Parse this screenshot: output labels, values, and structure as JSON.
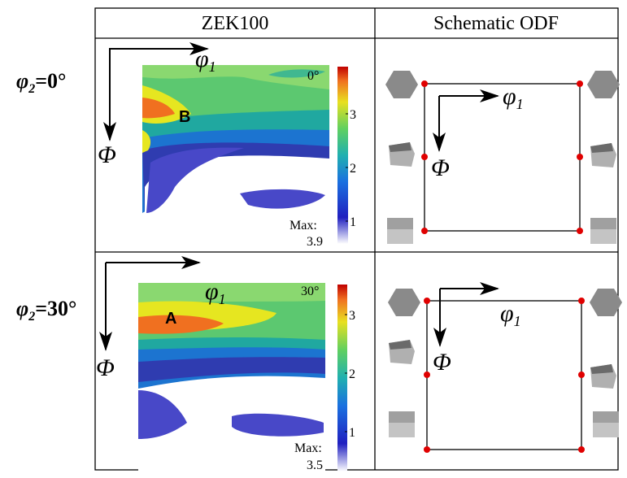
{
  "table": {
    "headers": [
      "ZEK100",
      "Schematic ODF"
    ],
    "rows": [
      {
        "label": {
          "symbol": "φ",
          "sub": "2",
          "rest": "=0°"
        },
        "plot": {
          "phi1": {
            "base": "φ",
            "sub": "1"
          },
          "Phi": "Φ",
          "peak": "B",
          "angle": "0°",
          "colorbar_ticks": [
            1,
            2,
            3
          ],
          "max_label": "Max:",
          "max": 3.9
        },
        "schematic": {
          "phi1": {
            "base": "φ",
            "sub": "1"
          },
          "Phi": "Φ"
        }
      },
      {
        "label": {
          "symbol": "φ",
          "sub": "2",
          "rest": "=30°"
        },
        "plot": {
          "phi1": {
            "base": "φ",
            "sub": "1"
          },
          "Phi": "Φ",
          "peak": "A",
          "angle": "30°",
          "colorbar_ticks": [
            1,
            2,
            3
          ],
          "max_label": "Max:",
          "max": 3.5
        },
        "schematic": {
          "phi1": {
            "base": "φ",
            "sub": "1"
          },
          "Phi": "Φ"
        }
      }
    ]
  }
}
